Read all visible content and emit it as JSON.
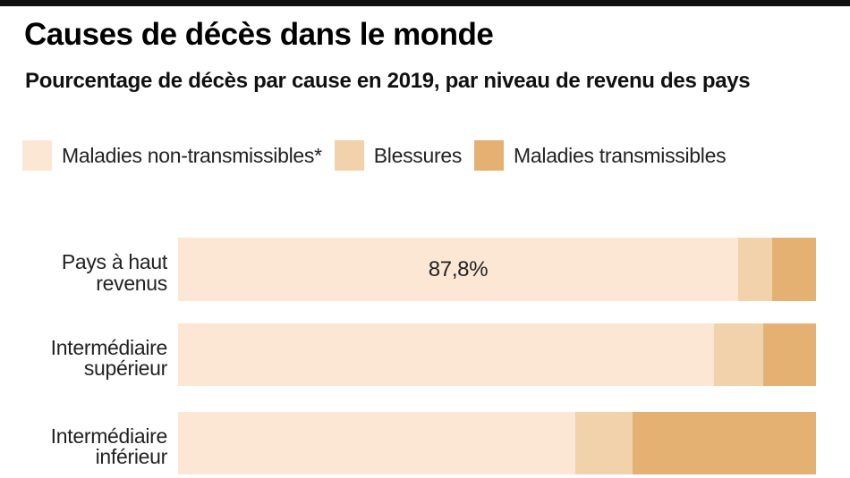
{
  "header": {
    "title": "Causes de décès dans le monde",
    "subtitle": "Pourcentage de décès par cause en 2019, par niveau de revenu des pays"
  },
  "colors": {
    "non_transmissibles": "#FBE7D3",
    "blessures": "#F1D2AA",
    "transmissibles": "#E5B173",
    "top_bar": "#111111"
  },
  "legend": {
    "items": [
      {
        "label": "Maladies non-transmissibles*",
        "color_key": "non_transmissibles"
      },
      {
        "label": "Blessures",
        "color_key": "blessures"
      },
      {
        "label": "Maladies transmissibles",
        "color_key": "transmissibles"
      }
    ]
  },
  "chart_data": {
    "type": "bar",
    "stacked": true,
    "orientation": "horizontal",
    "unit": "percent",
    "xlim": [
      0,
      100
    ],
    "grid": false,
    "legend_position": "top",
    "categories": [
      "Pays à haut revenus",
      "Intermédiaire supérieur",
      "Intermédiaire inférieur"
    ],
    "category_labels_2line": [
      "Pays à haut\nrevenus",
      "Intermédiaire\nsupérieur",
      "Intermédiaire\ninférieur"
    ],
    "series": [
      {
        "name": "Maladies non-transmissibles*",
        "color_key": "non_transmissibles",
        "values": [
          87.8,
          84.0,
          62.3
        ]
      },
      {
        "name": "Blessures",
        "color_key": "blessures",
        "values": [
          5.3,
          7.7,
          8.9
        ]
      },
      {
        "name": "Maladies transmissibles",
        "color_key": "transmissibles",
        "values": [
          6.9,
          8.3,
          28.8
        ]
      }
    ],
    "data_labels": [
      {
        "row": 0,
        "segment": 0,
        "text": "87,8%"
      }
    ]
  }
}
